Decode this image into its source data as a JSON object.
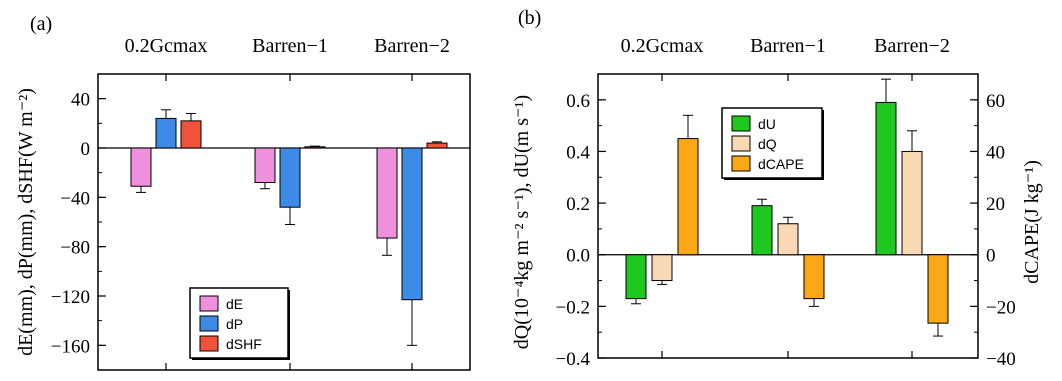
{
  "chart_data": [
    {
      "type": "bar",
      "panel_label": "(a)",
      "categories": [
        "0.2Gcmax",
        "Barren−1",
        "Barren−2"
      ],
      "ylabel": "dE(mm), dP(mm), dSHF(W m⁻²)",
      "ylim": [
        -180,
        60
      ],
      "yticks": [
        40,
        0,
        -40,
        -80,
        -120,
        -160
      ],
      "ytick_labels": [
        "40",
        "0",
        "−40",
        "−80",
        "−120",
        "−160"
      ],
      "legend_position": "lower-center",
      "series": [
        {
          "name": "dE",
          "color": "#ee90dd",
          "values": [
            -31,
            -28,
            -73
          ],
          "errors": [
            5,
            5,
            14
          ]
        },
        {
          "name": "dP",
          "color": "#3d8be6",
          "values": [
            24,
            -48,
            -123
          ],
          "errors": [
            7,
            14,
            37
          ]
        },
        {
          "name": "dSHF",
          "color": "#f0533a",
          "values": [
            22,
            1,
            4
          ],
          "errors": [
            6,
            0.5,
            1
          ]
        }
      ]
    },
    {
      "type": "bar",
      "panel_label": "(b)",
      "categories": [
        "0.2Gcmax",
        "Barren−1",
        "Barren−2"
      ],
      "ylabel": "dQ(10⁻⁴kg m⁻² s⁻¹), dU(m s⁻¹)",
      "ylabel_right": "dCAPE(J kg⁻¹)",
      "ylim": [
        -0.4,
        0.7
      ],
      "ylim_right": [
        -40,
        70
      ],
      "yticks": [
        0.6,
        0.4,
        0.2,
        0.0,
        -0.2,
        -0.4
      ],
      "ytick_labels": [
        "0.6",
        "0.4",
        "0.2",
        "0.0",
        "−0.2",
        "−0.4"
      ],
      "yticks_right": [
        60,
        40,
        20,
        0,
        -20,
        -40
      ],
      "ytick_labels_right": [
        "60",
        "40",
        "20",
        "0",
        "−20",
        "−40"
      ],
      "legend_position": "top-center",
      "series": [
        {
          "name": "dU",
          "color": "#1fc81f",
          "values": [
            -0.17,
            0.19,
            0.59
          ],
          "errors": [
            0.02,
            0.025,
            0.09
          ]
        },
        {
          "name": "dQ",
          "color": "#f9d9b4",
          "values": [
            -0.1,
            0.12,
            0.4
          ],
          "errors": [
            0.015,
            0.025,
            0.08
          ]
        },
        {
          "name": "dCAPE",
          "color": "#fca716",
          "axis": "right",
          "values": [
            45,
            -17,
            -26.5
          ],
          "errors": [
            9,
            3,
            5
          ]
        }
      ]
    }
  ]
}
